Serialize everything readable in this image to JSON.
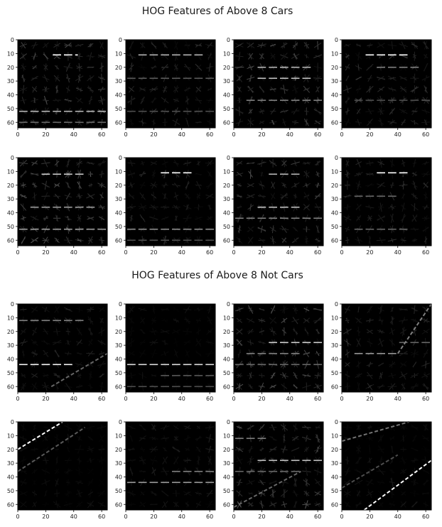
{
  "figure_titles": [
    "HOG Features of Above 8 Cars",
    "HOG Features of Above 8 Not Cars"
  ],
  "colors": {
    "background": "#000000",
    "feature": "#ffffff",
    "axis": "#000000",
    "text": "#1a1a1a"
  },
  "chart_data": {
    "type": "heatmap",
    "colormap": "gray",
    "grid": false,
    "xlim": [
      0,
      64
    ],
    "ylim": [
      64,
      0
    ],
    "xticks": [
      0,
      20,
      40,
      60
    ],
    "yticks": [
      0,
      10,
      20,
      30,
      40,
      50,
      60
    ],
    "cells_per_axis": 8,
    "groups": [
      {
        "title": "HOG Features of Above 8 Cars",
        "images": [
          {
            "horizontal_edges": [
              {
                "y": 11,
                "x": [
                  24,
                  44
                ],
                "intensity": 1.0
              },
              {
                "y": 52,
                "x": [
                  0,
                  64
                ],
                "intensity": 0.7
              },
              {
                "y": 60,
                "x": [
                  0,
                  64
                ],
                "intensity": 0.4
              }
            ],
            "diagonal_edges": [],
            "texture": 0.45
          },
          {
            "horizontal_edges": [
              {
                "y": 11,
                "x": [
                  8,
                  56
                ],
                "intensity": 0.7
              },
              {
                "y": 28,
                "x": [
                  0,
                  64
                ],
                "intensity": 0.35
              },
              {
                "y": 52,
                "x": [
                  0,
                  64
                ],
                "intensity": 0.3
              }
            ],
            "diagonal_edges": [],
            "texture": 0.3
          },
          {
            "horizontal_edges": [
              {
                "y": 20,
                "x": [
                  16,
                  56
                ],
                "intensity": 0.7
              },
              {
                "y": 28,
                "x": [
                  16,
                  56
                ],
                "intensity": 0.75
              },
              {
                "y": 44,
                "x": [
                  8,
                  64
                ],
                "intensity": 0.5
              }
            ],
            "diagonal_edges": [],
            "texture": 0.5
          },
          {
            "horizontal_edges": [
              {
                "y": 11,
                "x": [
                  16,
                  48
                ],
                "intensity": 1.0
              },
              {
                "y": 20,
                "x": [
                  24,
                  56
                ],
                "intensity": 0.5
              },
              {
                "y": 44,
                "x": [
                  8,
                  64
                ],
                "intensity": 0.3
              }
            ],
            "diagonal_edges": [],
            "texture": 0.35
          },
          {
            "horizontal_edges": [
              {
                "y": 12,
                "x": [
                  16,
                  48
                ],
                "intensity": 0.8
              },
              {
                "y": 36,
                "x": [
                  8,
                  56
                ],
                "intensity": 0.6
              },
              {
                "y": 52,
                "x": [
                  0,
                  64
                ],
                "intensity": 0.6
              }
            ],
            "diagonal_edges": [],
            "texture": 0.55
          },
          {
            "horizontal_edges": [
              {
                "y": 11,
                "x": [
                  24,
                  48
                ],
                "intensity": 1.0
              },
              {
                "y": 52,
                "x": [
                  0,
                  64
                ],
                "intensity": 0.55
              },
              {
                "y": 60,
                "x": [
                  0,
                  64
                ],
                "intensity": 0.3
              }
            ],
            "diagonal_edges": [],
            "texture": 0.25
          },
          {
            "horizontal_edges": [
              {
                "y": 12,
                "x": [
                  24,
                  48
                ],
                "intensity": 0.7
              },
              {
                "y": 36,
                "x": [
                  16,
                  48
                ],
                "intensity": 0.75
              },
              {
                "y": 44,
                "x": [
                  0,
                  64
                ],
                "intensity": 0.5
              }
            ],
            "diagonal_edges": [],
            "texture": 0.45
          },
          {
            "horizontal_edges": [
              {
                "y": 11,
                "x": [
                  24,
                  48
                ],
                "intensity": 1.0
              },
              {
                "y": 28,
                "x": [
                  8,
                  40
                ],
                "intensity": 0.4
              },
              {
                "y": 52,
                "x": [
                  8,
                  48
                ],
                "intensity": 0.4
              }
            ],
            "diagonal_edges": [],
            "texture": 0.3
          }
        ]
      },
      {
        "title": "HOG Features of Above 8 Not Cars",
        "images": [
          {
            "horizontal_edges": [
              {
                "y": 12,
                "x": [
                  0,
                  48
                ],
                "intensity": 0.5
              },
              {
                "y": 44,
                "x": [
                  0,
                  40
                ],
                "intensity": 0.95
              }
            ],
            "diagonal_edges": [
              {
                "x": [
                  24,
                  64
                ],
                "y": [
                  60,
                  36
                ],
                "intensity": 0.4
              }
            ],
            "texture": 0.25
          },
          {
            "horizontal_edges": [
              {
                "y": 44,
                "x": [
                  0,
                  64
                ],
                "intensity": 0.85
              },
              {
                "y": 52,
                "x": [
                  24,
                  64
                ],
                "intensity": 0.35
              },
              {
                "y": 60,
                "x": [
                  0,
                  64
                ],
                "intensity": 0.3
              }
            ],
            "diagonal_edges": [],
            "texture": 0.12
          },
          {
            "horizontal_edges": [
              {
                "y": 28,
                "x": [
                  24,
                  64
                ],
                "intensity": 0.8
              },
              {
                "y": 36,
                "x": [
                  8,
                  48
                ],
                "intensity": 0.5
              },
              {
                "y": 44,
                "x": [
                  0,
                  64
                ],
                "intensity": 0.4
              }
            ],
            "diagonal_edges": [],
            "texture": 0.55
          },
          {
            "horizontal_edges": [
              {
                "y": 36,
                "x": [
                  8,
                  40
                ],
                "intensity": 0.6
              },
              {
                "y": 28,
                "x": [
                  40,
                  64
                ],
                "intensity": 0.4
              }
            ],
            "diagonal_edges": [
              {
                "x": [
                  40,
                  64
                ],
                "y": [
                  36,
                  0
                ],
                "intensity": 0.5
              }
            ],
            "texture": 0.3
          },
          {
            "horizontal_edges": [],
            "diagonal_edges": [
              {
                "x": [
                  0,
                  32
                ],
                "y": [
                  20,
                  0
                ],
                "intensity": 1.0
              },
              {
                "x": [
                  0,
                  48
                ],
                "y": [
                  36,
                  4
                ],
                "intensity": 0.35
              }
            ],
            "texture": 0.12
          },
          {
            "horizontal_edges": [
              {
                "y": 44,
                "x": [
                  0,
                  64
                ],
                "intensity": 0.6
              },
              {
                "y": 36,
                "x": [
                  32,
                  64
                ],
                "intensity": 0.5
              }
            ],
            "diagonal_edges": [],
            "texture": 0.2
          },
          {
            "horizontal_edges": [
              {
                "y": 12,
                "x": [
                  0,
                  24
                ],
                "intensity": 0.5
              },
              {
                "y": 28,
                "x": [
                  16,
                  64
                ],
                "intensity": 0.75
              },
              {
                "y": 36,
                "x": [
                  0,
                  48
                ],
                "intensity": 0.4
              }
            ],
            "diagonal_edges": [
              {
                "x": [
                  0,
                  48
                ],
                "y": [
                  62,
                  36
                ],
                "intensity": 0.4
              }
            ],
            "texture": 0.5
          },
          {
            "horizontal_edges": [],
            "diagonal_edges": [
              {
                "x": [
                  16,
                  64
                ],
                "y": [
                  64,
                  28
                ],
                "intensity": 1.0
              },
              {
                "x": [
                  0,
                  48
                ],
                "y": [
                  14,
                  0
                ],
                "intensity": 0.45
              },
              {
                "x": [
                  0,
                  40
                ],
                "y": [
                  48,
                  24
                ],
                "intensity": 0.3
              }
            ],
            "texture": 0.15
          }
        ]
      }
    ]
  }
}
